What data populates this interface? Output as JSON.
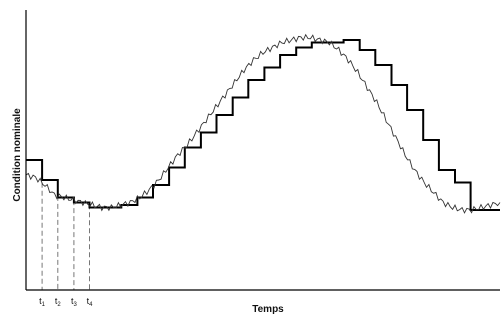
{
  "chart_data": {
    "type": "line",
    "title": "",
    "xlabel": "Temps",
    "ylabel": "Condition nominale",
    "colors": {
      "axis": "#000000",
      "step_series": "#000000",
      "continuous_series": "#333333",
      "guide_lines": "#777777"
    },
    "grid": false,
    "legend": "none",
    "xlim": [
      0,
      100
    ],
    "ylim": [
      0,
      100
    ],
    "ticks": [
      {
        "label": "t",
        "sub": "1",
        "x": 3.4
      },
      {
        "label": "t",
        "sub": "2",
        "x": 6.7
      },
      {
        "label": "t",
        "sub": "3",
        "x": 10.1
      },
      {
        "label": "t",
        "sub": "4",
        "x": 13.4
      }
    ],
    "series": [
      {
        "kind": "step",
        "x": [
          0,
          3.4,
          6.7,
          10.1,
          13.4,
          16.8,
          20.1,
          23.5,
          26.8,
          30.2,
          33.5,
          36.9,
          40.2,
          43.6,
          46.9,
          50.3,
          53.6,
          57.0,
          60.3,
          63.7,
          67.0,
          70.4,
          73.7,
          77.1,
          80.4,
          83.8,
          87.1,
          90.5,
          93.8,
          97.1,
          100
        ],
        "y": [
          48,
          40,
          33,
          31,
          29,
          29,
          30,
          33,
          38,
          45,
          53,
          59,
          66,
          73,
          80,
          85,
          90,
          93,
          95,
          95,
          96,
          92,
          86,
          78,
          68,
          56,
          44,
          39,
          28,
          28,
          31
        ]
      },
      {
        "kind": "continuous",
        "x": [
          0,
          2,
          4,
          6,
          8,
          10,
          12,
          14,
          16,
          18,
          20,
          22,
          24,
          26,
          28,
          30,
          32,
          34,
          36,
          38,
          40,
          42,
          44,
          46,
          48,
          50,
          52,
          54,
          56,
          58,
          60,
          62,
          64,
          66,
          68,
          70,
          72,
          74,
          76,
          78,
          80,
          82,
          84,
          86,
          88,
          90,
          92,
          94,
          96,
          98,
          100
        ],
        "y": [
          42,
          41,
          38,
          34,
          33,
          32,
          31,
          30,
          29,
          29,
          30,
          31,
          33,
          36,
          40,
          45,
          50,
          54,
          59,
          64,
          69,
          74,
          79,
          84,
          88,
          91,
          93,
          95,
          96,
          97,
          97,
          96,
          95,
          92,
          88,
          83,
          77,
          71,
          64,
          57,
          50,
          44,
          39,
          35,
          31,
          29,
          28,
          28,
          29,
          30,
          31
        ]
      }
    ]
  }
}
